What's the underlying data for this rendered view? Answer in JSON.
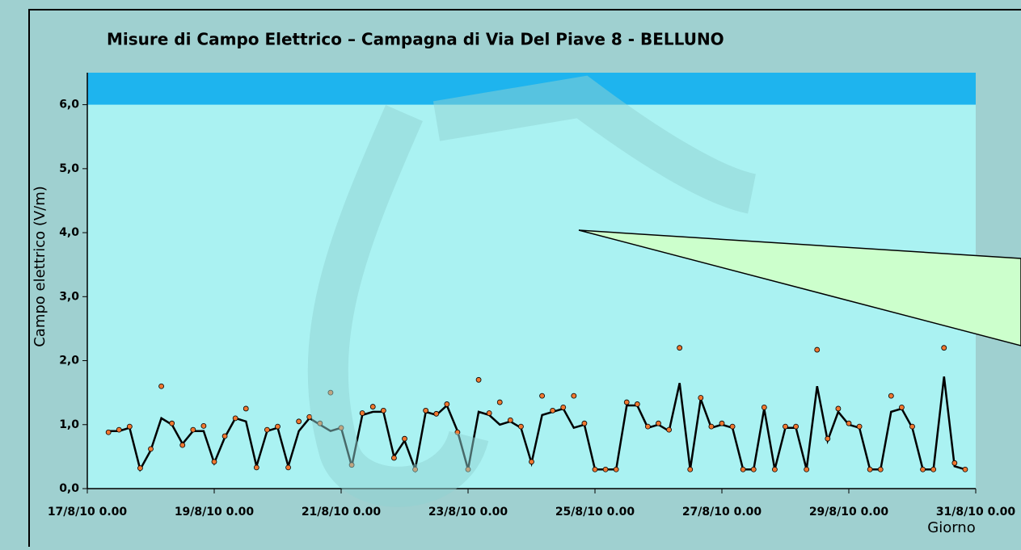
{
  "chart_data": {
    "type": "line",
    "title": "Misure di Campo Elettrico – Campagna di Via Del Piave 8 - BELLUNO",
    "ylabel": "Campo elettrico (V/m)",
    "xlabel": "Giorno",
    "ylim": [
      0,
      6.5
    ],
    "yticks": [
      {
        "value": 0,
        "label": "0,0"
      },
      {
        "value": 1,
        "label": "1,0"
      },
      {
        "value": 2,
        "label": "2,0"
      },
      {
        "value": 3,
        "label": "3,0"
      },
      {
        "value": 4,
        "label": "4,0"
      },
      {
        "value": 5,
        "label": "5,0"
      },
      {
        "value": 6,
        "label": "6,0"
      }
    ],
    "xlim": [
      "17/8/10 0.00",
      "31/8/10 0.00"
    ],
    "xticks": [
      "17/8/10 0.00",
      "19/8/10 0.00",
      "21/8/10 0.00",
      "23/8/10 0.00",
      "25/8/10 0.00",
      "27/8/10 0.00",
      "29/8/10 0.00",
      "31/8/10 0.00"
    ],
    "limit_band": [
      6,
      6.5
    ],
    "band_color": "#1eb4ee",
    "x": [
      "17/8/10 8.00",
      "17/8/10 12.00",
      "17/8/10 16.00",
      "17/8/10 20.00",
      "18/8/10 0.00",
      "18/8/10 4.00",
      "18/8/10 8.00",
      "18/8/10 12.00",
      "18/8/10 16.00",
      "18/8/10 20.00",
      "19/8/10 0.00",
      "19/8/10 4.00",
      "19/8/10 8.00",
      "19/8/10 12.00",
      "19/8/10 16.00",
      "19/8/10 20.00",
      "20/8/10 0.00",
      "20/8/10 4.00",
      "20/8/10 8.00",
      "20/8/10 12.00",
      "20/8/10 16.00",
      "20/8/10 20.00",
      "21/8/10 0.00",
      "21/8/10 4.00",
      "21/8/10 8.00",
      "21/8/10 12.00",
      "21/8/10 16.00",
      "21/8/10 20.00",
      "22/8/10 0.00",
      "22/8/10 4.00",
      "22/8/10 8.00",
      "22/8/10 12.00",
      "22/8/10 16.00",
      "22/8/10 20.00",
      "23/8/10 0.00",
      "23/8/10 4.00",
      "23/8/10 8.00",
      "23/8/10 12.00",
      "23/8/10 16.00",
      "23/8/10 20.00",
      "24/8/10 0.00",
      "24/8/10 4.00",
      "24/8/10 8.00",
      "24/8/10 12.00",
      "24/8/10 16.00",
      "24/8/10 20.00",
      "25/8/10 0.00",
      "25/8/10 4.00",
      "25/8/10 8.00",
      "25/8/10 12.00",
      "25/8/10 16.00",
      "25/8/10 20.00",
      "26/8/10 0.00",
      "26/8/10 4.00",
      "26/8/10 8.00",
      "26/8/10 12.00",
      "26/8/10 16.00",
      "26/8/10 20.00",
      "27/8/10 0.00",
      "27/8/10 4.00",
      "27/8/10 8.00",
      "27/8/10 12.00",
      "27/8/10 16.00",
      "27/8/10 20.00",
      "28/8/10 0.00",
      "28/8/10 4.00",
      "28/8/10 8.00",
      "28/8/10 12.00",
      "28/8/10 16.00",
      "28/8/10 20.00",
      "29/8/10 0.00",
      "29/8/10 4.00",
      "29/8/10 8.00",
      "29/8/10 12.00",
      "29/8/10 16.00",
      "29/8/10 20.00",
      "30/8/10 0.00",
      "30/8/10 4.00",
      "30/8/10 8.00",
      "30/8/10 12.00",
      "30/8/10 16.00",
      "30/8/10 20.00"
    ],
    "series": [
      {
        "style": "line",
        "color": "#000000",
        "values": [
          0.9,
          0.9,
          0.95,
          0.3,
          0.6,
          1.1,
          1.0,
          0.7,
          0.9,
          0.9,
          0.4,
          0.8,
          1.1,
          1.05,
          0.35,
          0.9,
          0.95,
          0.35,
          0.9,
          1.1,
          1.0,
          0.9,
          0.95,
          0.35,
          1.15,
          1.2,
          1.2,
          0.5,
          0.75,
          0.3,
          1.2,
          1.15,
          1.3,
          0.9,
          0.3,
          1.2,
          1.15,
          1.0,
          1.05,
          0.95,
          0.4,
          1.15,
          1.2,
          1.25,
          0.95,
          1.0,
          0.3,
          0.3,
          0.3,
          1.3,
          1.3,
          0.95,
          1.0,
          0.9,
          1.65,
          0.3,
          1.4,
          0.95,
          1.0,
          0.95,
          0.3,
          0.3,
          1.25,
          0.3,
          0.95,
          0.95,
          0.3,
          1.6,
          0.75,
          1.2,
          1.0,
          0.95,
          0.3,
          0.3,
          1.2,
          1.25,
          0.95,
          0.3,
          0.3,
          1.75,
          0.35,
          0.3
        ]
      },
      {
        "style": "points",
        "color": "#f07830",
        "values": [
          0.88,
          0.92,
          0.97,
          0.32,
          0.62,
          1.6,
          1.02,
          0.68,
          0.92,
          0.98,
          0.42,
          0.82,
          1.1,
          1.25,
          0.33,
          0.92,
          0.97,
          0.33,
          1.05,
          1.12,
          1.02,
          1.5,
          0.95,
          0.37,
          1.18,
          1.28,
          1.22,
          0.48,
          0.78,
          0.3,
          1.22,
          1.17,
          1.32,
          0.88,
          0.3,
          1.7,
          1.18,
          1.35,
          1.07,
          0.97,
          0.42,
          1.45,
          1.22,
          1.27,
          1.45,
          1.02,
          0.3,
          0.3,
          0.3,
          1.35,
          1.32,
          0.97,
          1.02,
          0.92,
          2.2,
          0.3,
          1.42,
          0.97,
          1.02,
          0.97,
          0.3,
          0.3,
          1.27,
          0.3,
          0.97,
          0.97,
          0.3,
          2.17,
          0.78,
          1.25,
          1.02,
          0.97,
          0.3,
          0.3,
          1.45,
          1.27,
          0.97,
          0.3,
          0.3,
          2.2,
          0.4,
          0.3
        ]
      }
    ]
  }
}
